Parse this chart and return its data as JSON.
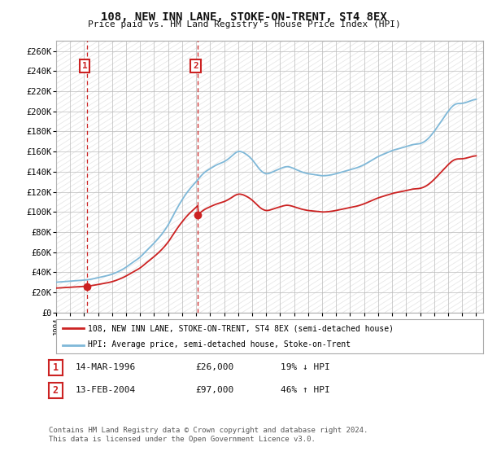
{
  "title": "108, NEW INN LANE, STOKE-ON-TRENT, ST4 8EX",
  "subtitle": "Price paid vs. HM Land Registry's House Price Index (HPI)",
  "ylim": [
    0,
    270000
  ],
  "yticks": [
    0,
    20000,
    40000,
    60000,
    80000,
    100000,
    120000,
    140000,
    160000,
    180000,
    200000,
    220000,
    240000,
    260000
  ],
  "ytick_labels": [
    "£0",
    "£20K",
    "£40K",
    "£60K",
    "£80K",
    "£100K",
    "£120K",
    "£140K",
    "£160K",
    "£180K",
    "£200K",
    "£220K",
    "£240K",
    "£260K"
  ],
  "hpi_color": "#7fb8d8",
  "price_color": "#cc2222",
  "sale1_year": 1996.2,
  "sale1_price": 26000,
  "sale2_year": 2004.12,
  "sale2_price": 97000,
  "legend_line1": "108, NEW INN LANE, STOKE-ON-TRENT, ST4 8EX (semi-detached house)",
  "legend_line2": "HPI: Average price, semi-detached house, Stoke-on-Trent",
  "table_row1": [
    "1",
    "14-MAR-1996",
    "£26,000",
    "19% ↓ HPI"
  ],
  "table_row2": [
    "2",
    "13-FEB-2004",
    "£97,000",
    "46% ↑ HPI"
  ],
  "footnote1": "Contains HM Land Registry data © Crown copyright and database right 2024.",
  "footnote2": "This data is licensed under the Open Government Licence v3.0.",
  "background_color": "#ffffff",
  "grid_color": "#bbbbbb",
  "hatch_color": "#e8e8e8"
}
